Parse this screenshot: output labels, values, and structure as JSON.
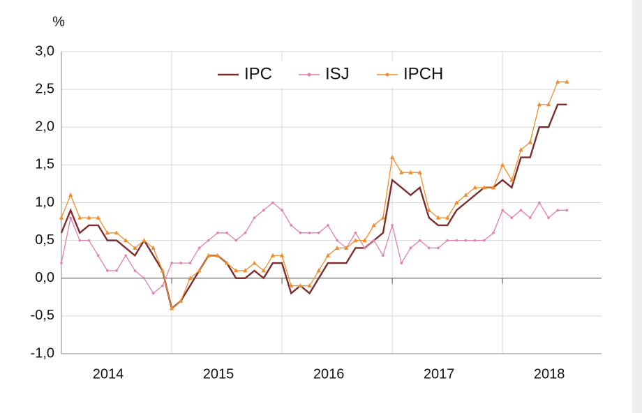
{
  "chart_data": {
    "type": "line",
    "y_unit": "%",
    "categories": [
      null,
      null,
      null,
      null,
      null,
      null,
      "2014",
      null,
      null,
      null,
      null,
      null,
      null,
      null,
      null,
      null,
      null,
      null,
      "2015",
      null,
      null,
      null,
      null,
      null,
      null,
      null,
      null,
      null,
      null,
      null,
      "2016",
      null,
      null,
      null,
      null,
      null,
      null,
      null,
      null,
      null,
      null,
      null,
      "2017",
      null,
      null,
      null,
      null,
      null,
      null,
      null,
      null,
      null,
      null,
      null,
      "2018",
      null
    ],
    "series": [
      {
        "name": "IPC",
        "color": "#7b2c2c",
        "marker": false,
        "values": [
          0.6,
          0.9,
          0.6,
          0.7,
          0.7,
          0.5,
          0.5,
          0.4,
          0.3,
          0.5,
          0.3,
          0.1,
          -0.4,
          -0.3,
          -0.1,
          0.1,
          0.3,
          0.3,
          0.2,
          0.0,
          0.0,
          0.1,
          0.0,
          0.2,
          0.2,
          -0.2,
          -0.1,
          -0.2,
          0.0,
          0.2,
          0.2,
          0.2,
          0.4,
          0.4,
          0.5,
          0.6,
          1.3,
          1.2,
          1.1,
          1.2,
          0.8,
          0.7,
          0.7,
          0.9,
          1.0,
          1.1,
          1.2,
          1.2,
          1.3,
          1.2,
          1.6,
          1.6,
          2.0,
          2.0,
          2.3,
          2.3
        ]
      },
      {
        "name": "ISJ",
        "color": "#e07fb0",
        "marker": true,
        "values": [
          0.2,
          0.8,
          0.5,
          0.5,
          0.3,
          0.1,
          0.1,
          0.3,
          0.1,
          0.0,
          -0.2,
          -0.1,
          0.2,
          0.2,
          0.2,
          0.4,
          0.5,
          0.6,
          0.6,
          0.5,
          0.6,
          0.8,
          0.9,
          1.0,
          0.9,
          0.7,
          0.6,
          0.6,
          0.6,
          0.7,
          0.5,
          0.4,
          0.6,
          0.4,
          0.5,
          0.3,
          0.7,
          0.2,
          0.4,
          0.5,
          0.4,
          0.4,
          0.5,
          0.5,
          0.5,
          0.5,
          0.5,
          0.6,
          0.9,
          0.8,
          0.9,
          0.8,
          1.0,
          0.8,
          0.9,
          0.9
        ]
      },
      {
        "name": "IPCH",
        "color": "#f28c28",
        "marker": true,
        "values": [
          0.8,
          1.1,
          0.8,
          0.8,
          0.8,
          0.6,
          0.6,
          0.5,
          0.4,
          0.5,
          0.4,
          0.1,
          -0.4,
          -0.3,
          0.0,
          0.1,
          0.3,
          0.3,
          0.2,
          0.1,
          0.1,
          0.2,
          0.1,
          0.3,
          0.3,
          -0.1,
          -0.1,
          -0.1,
          0.1,
          0.3,
          0.4,
          0.4,
          0.5,
          0.5,
          0.7,
          0.8,
          1.6,
          1.4,
          1.4,
          1.4,
          0.9,
          0.8,
          0.8,
          1.0,
          1.1,
          1.2,
          1.2,
          1.2,
          1.5,
          1.3,
          1.7,
          1.8,
          2.3,
          2.3,
          2.6,
          2.6
        ]
      }
    ],
    "ylim": [
      -1.0,
      3.0
    ],
    "yticks": [
      {
        "value": -1.0,
        "label": "-1,0"
      },
      {
        "value": -0.5,
        "label": "-0,5"
      },
      {
        "value": 0.0,
        "label": "0,0"
      },
      {
        "value": 0.5,
        "label": "0,5"
      },
      {
        "value": 1.0,
        "label": "1,0"
      },
      {
        "value": 1.5,
        "label": "1,5"
      },
      {
        "value": 2.0,
        "label": "2,0"
      },
      {
        "value": 2.5,
        "label": "2,5"
      },
      {
        "value": 3.0,
        "label": "3,0"
      }
    ],
    "grid": true,
    "legend": "top"
  }
}
